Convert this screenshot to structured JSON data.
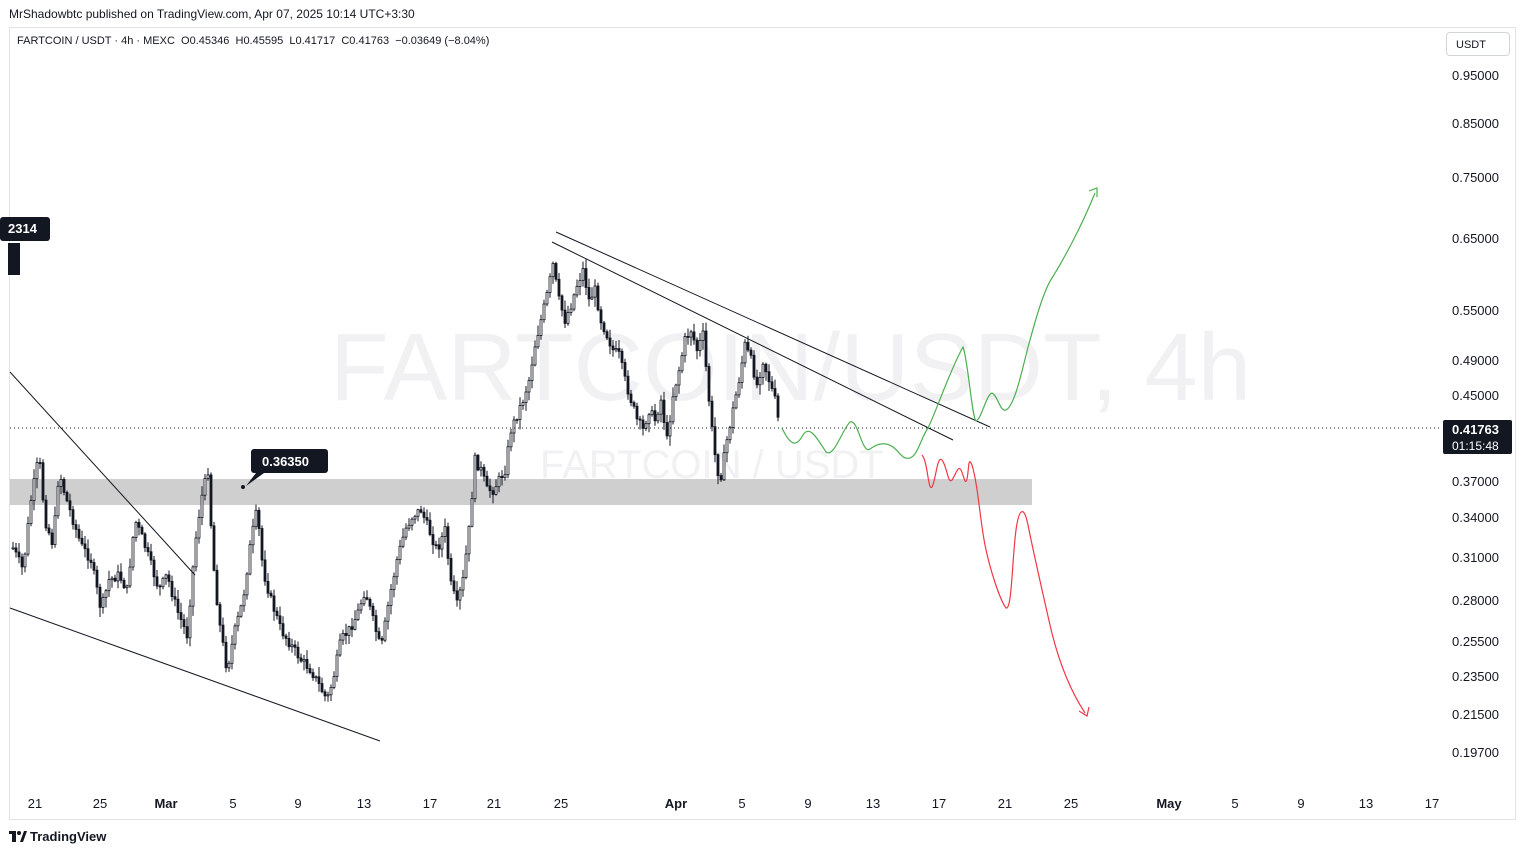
{
  "publisher": "MrShadowbtc published on TradingView.com, Apr 07, 2025 10:14 UTC+3:30",
  "legend": {
    "symbol": "FARTCOIN / USDT · 4h · MEXC",
    "o_label": "O",
    "o": "0.45346",
    "h_label": "H",
    "h": "0.45595",
    "l_label": "L",
    "l": "0.41717",
    "c_label": "C",
    "c": "0.41763",
    "change": "−0.03649 (−8.04%)"
  },
  "currency_button": "USDT",
  "watermark": {
    "main": "FARTCOIN/USDT, 4h",
    "sub": "FARTCOIN / USDT"
  },
  "footer": {
    "brand": "TradingView"
  },
  "colors": {
    "up_path": "#4caf50",
    "down_path": "#f23645",
    "zone": "#cccccc",
    "trend": "#131722"
  },
  "chart_data": {
    "type": "candlestick",
    "y_axis_labels": [
      "0.95000",
      "0.85000",
      "0.75000",
      "0.65000",
      "0.55000",
      "0.49000",
      "0.45000",
      "0.37000",
      "0.34000",
      "0.31000",
      "0.28000",
      "0.25500",
      "0.23500",
      "0.21500",
      "0.19700"
    ],
    "x_axis_labels": [
      {
        "text": "21",
        "bold": false
      },
      {
        "text": "25",
        "bold": false
      },
      {
        "text": "Mar",
        "bold": true
      },
      {
        "text": "5",
        "bold": false
      },
      {
        "text": "9",
        "bold": false
      },
      {
        "text": "13",
        "bold": false
      },
      {
        "text": "17",
        "bold": false
      },
      {
        "text": "21",
        "bold": false
      },
      {
        "text": "25",
        "bold": false
      },
      {
        "text": "Apr",
        "bold": true
      },
      {
        "text": "5",
        "bold": false
      },
      {
        "text": "9",
        "bold": false
      },
      {
        "text": "13",
        "bold": false
      },
      {
        "text": "17",
        "bold": false
      },
      {
        "text": "21",
        "bold": false
      },
      {
        "text": "25",
        "bold": false
      },
      {
        "text": "May",
        "bold": true
      },
      {
        "text": "5",
        "bold": false
      },
      {
        "text": "9",
        "bold": false
      },
      {
        "text": "13",
        "bold": false
      },
      {
        "text": "17",
        "bold": false
      }
    ],
    "last_price": {
      "value": "0.41763",
      "countdown": "01:15:48"
    },
    "left_price_tag": "2314",
    "annotation": {
      "text": "0.36350"
    },
    "support_zone": {
      "low": 0.355,
      "high": 0.373
    },
    "projections": [
      "bullish breakout path (green)",
      "bearish breakdown path (red)"
    ]
  }
}
